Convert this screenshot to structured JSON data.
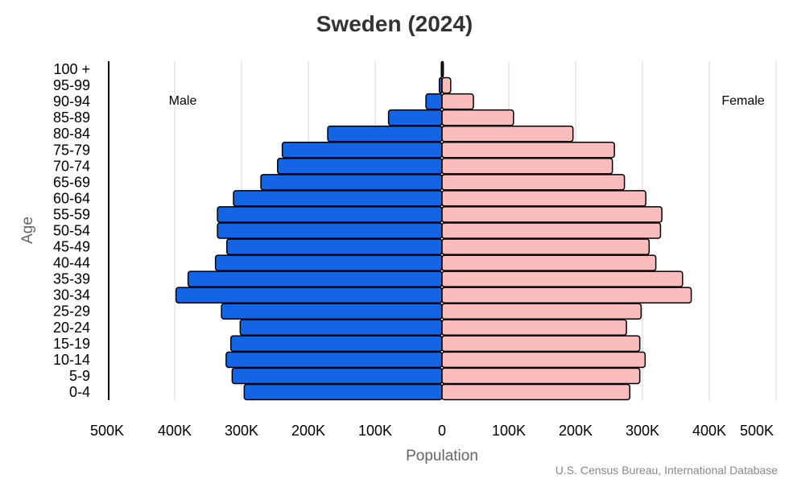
{
  "chart_data": {
    "type": "bar",
    "orientation": "horizontal-pyramid",
    "title": "Sweden (2024)",
    "xlabel": "Population",
    "ylabel": "Age",
    "source": "U.S. Census Bureau, International Database",
    "categories": [
      "0-4",
      "5-9",
      "10-14",
      "15-19",
      "20-24",
      "25-29",
      "30-34",
      "35-39",
      "40-44",
      "45-49",
      "50-54",
      "55-59",
      "60-64",
      "65-69",
      "70-74",
      "75-79",
      "80-84",
      "85-89",
      "90-94",
      "95-99",
      "100 +"
    ],
    "series": [
      {
        "name": "Male",
        "color": "#1464e6",
        "values": [
          296000,
          314000,
          323000,
          316000,
          302000,
          330000,
          398000,
          380000,
          339000,
          322000,
          336000,
          336000,
          312000,
          271000,
          246000,
          239000,
          171000,
          80000,
          24000,
          4000,
          1000
        ]
      },
      {
        "name": "Female",
        "color": "#fbbcbc",
        "values": [
          281000,
          296000,
          304000,
          296000,
          276000,
          298000,
          373000,
          360000,
          320000,
          310000,
          327000,
          329000,
          305000,
          273000,
          255000,
          258000,
          196000,
          107000,
          47000,
          13000,
          2000
        ]
      }
    ],
    "xlim": [
      -500000,
      500000
    ],
    "xticks": [
      "500K",
      "400K",
      "300K",
      "200K",
      "100K",
      "0",
      "100K",
      "200K",
      "300K",
      "400K",
      "500K"
    ],
    "grid": true
  }
}
